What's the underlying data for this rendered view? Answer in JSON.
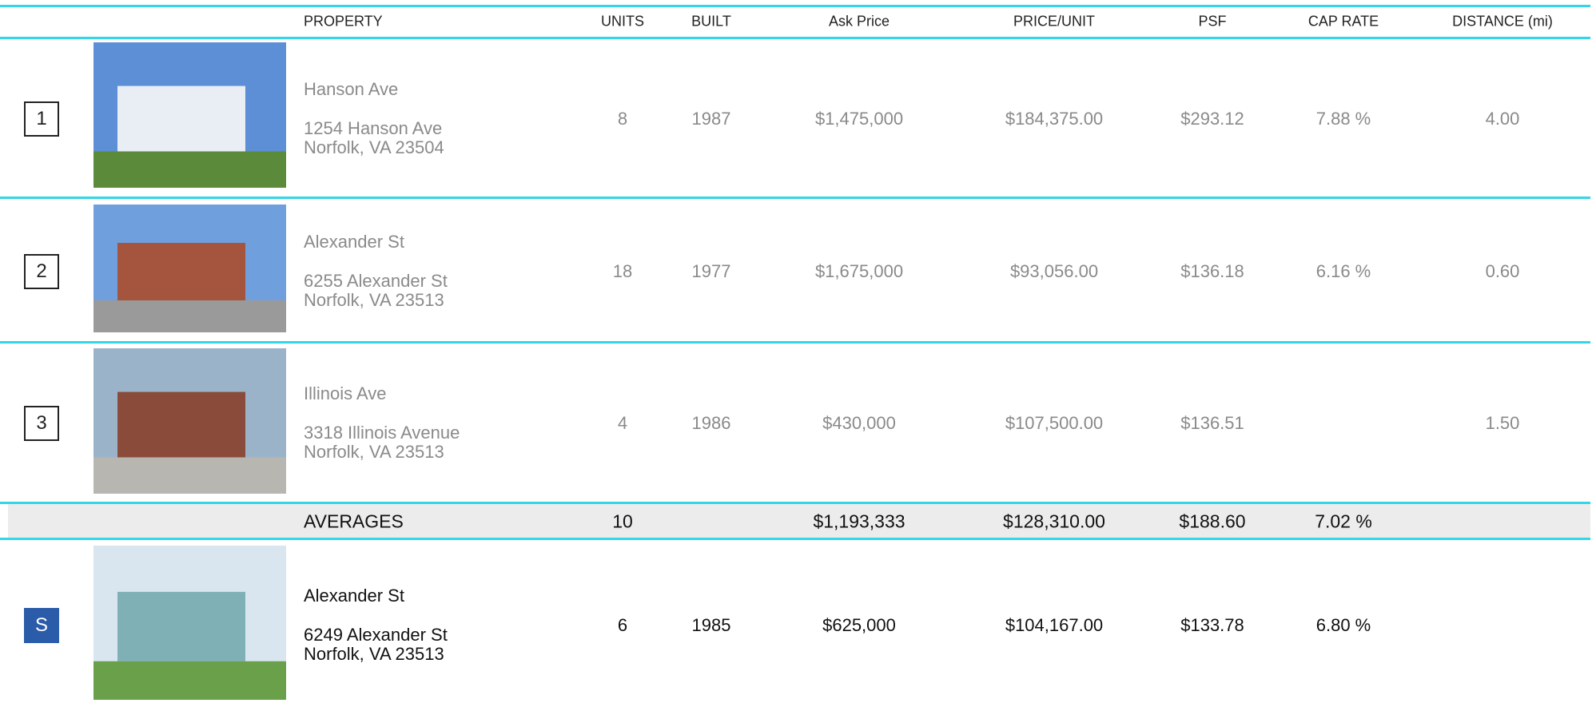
{
  "header": [
    "PROPERTY",
    "UNITS",
    "BUILT",
    "Ask Price",
    "PRICE/UNIT",
    "PSF",
    "CAP RATE",
    "DISTANCE (mi)"
  ],
  "rows": [
    {
      "number": "1",
      "name": "Hanson Ave",
      "address": [
        "1254 Hanson Ave",
        "Norfolk, VA 23504"
      ],
      "units": "8",
      "built": "1987",
      "ask_price": "$1,475,000",
      "price_per_unit": "$184,375.00",
      "psf": "$293.12",
      "cap_rate": "7.88 %",
      "distance": "4.00"
    },
    {
      "number": "2",
      "name": "Alexander St",
      "address": [
        "6255 Alexander St",
        "Norfolk, VA 23513"
      ],
      "units": "18",
      "built": "1977",
      "ask_price": "$1,675,000",
      "price_per_unit": "$93,056.00",
      "psf": "$136.18",
      "cap_rate": "6.16 %",
      "distance": "0.60"
    },
    {
      "number": "3",
      "name": "Illinois Ave",
      "address": [
        "3318 Illinois Avenue",
        "Norfolk, VA 23513"
      ],
      "units": "4",
      "built": "1986",
      "ask_price": "$430,000",
      "price_per_unit": "$107,500.00",
      "psf": "$136.51",
      "distance": "1.50"
    }
  ],
  "averages": {
    "label": "AVERAGES",
    "units": "10",
    "ask_price": "$1,193,333",
    "price_per_unit": "$128,310.00",
    "psf": "$188.60",
    "cap_rate": "7.02 %"
  },
  "subject": {
    "number": "S",
    "name": "Alexander St",
    "address": [
      "6249 Alexander St",
      "Norfolk, VA 23513"
    ],
    "units": "6",
    "built": "1985",
    "ask_price": "$625,000",
    "price_per_unit": "$104,167.00",
    "psf": "$133.78",
    "cap_rate": "6.80 %"
  }
}
